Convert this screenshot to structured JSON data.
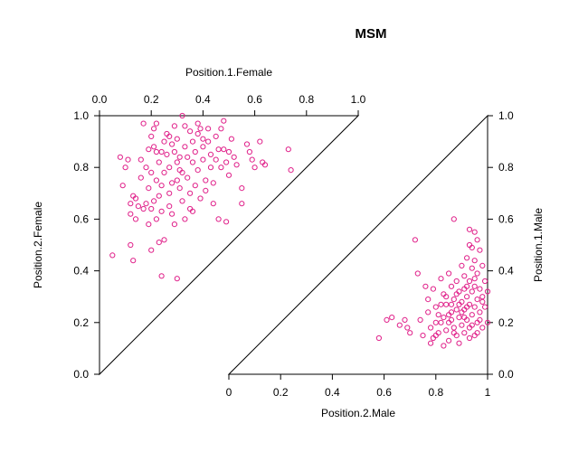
{
  "chart_data": {
    "type": "scatter",
    "title": "MSM",
    "point_color": "#e0218a",
    "panels": [
      {
        "name": "female",
        "xlabel": "Position.1.Female",
        "ylabel": "Position.2.Female",
        "xlim": [
          0,
          1.0
        ],
        "ylim": [
          0,
          1.0
        ],
        "x_ticks": [
          "0.0",
          "0.2",
          "0.4",
          "0.6",
          "0.8",
          "1.0"
        ],
        "y_ticks": [
          "0.0",
          "0.2",
          "0.4",
          "0.6",
          "0.8",
          "1.0"
        ],
        "points": [
          [
            0.05,
            0.46
          ],
          [
            0.08,
            0.84
          ],
          [
            0.09,
            0.73
          ],
          [
            0.1,
            0.8
          ],
          [
            0.11,
            0.83
          ],
          [
            0.12,
            0.5
          ],
          [
            0.13,
            0.44
          ],
          [
            0.12,
            0.66
          ],
          [
            0.13,
            0.69
          ],
          [
            0.14,
            0.68
          ],
          [
            0.12,
            0.62
          ],
          [
            0.14,
            0.6
          ],
          [
            0.15,
            0.65
          ],
          [
            0.16,
            0.76
          ],
          [
            0.17,
            0.64
          ],
          [
            0.16,
            0.83
          ],
          [
            0.18,
            0.8
          ],
          [
            0.17,
            0.97
          ],
          [
            0.19,
            0.87
          ],
          [
            0.2,
            0.92
          ],
          [
            0.21,
            0.95
          ],
          [
            0.21,
            0.88
          ],
          [
            0.2,
            0.78
          ],
          [
            0.19,
            0.72
          ],
          [
            0.18,
            0.66
          ],
          [
            0.2,
            0.64
          ],
          [
            0.21,
            0.67
          ],
          [
            0.22,
            0.86
          ],
          [
            0.23,
            0.82
          ],
          [
            0.22,
            0.75
          ],
          [
            0.23,
            0.69
          ],
          [
            0.24,
            0.63
          ],
          [
            0.25,
            0.9
          ],
          [
            0.26,
            0.93
          ],
          [
            0.25,
            0.78
          ],
          [
            0.24,
            0.73
          ],
          [
            0.26,
            0.85
          ],
          [
            0.27,
            0.8
          ],
          [
            0.27,
            0.7
          ],
          [
            0.28,
            0.62
          ],
          [
            0.28,
            0.74
          ],
          [
            0.29,
            0.86
          ],
          [
            0.3,
            0.91
          ],
          [
            0.3,
            0.82
          ],
          [
            0.31,
            0.79
          ],
          [
            0.31,
            0.72
          ],
          [
            0.32,
            0.67
          ],
          [
            0.32,
            1.0
          ],
          [
            0.33,
            0.96
          ],
          [
            0.33,
            0.88
          ],
          [
            0.34,
            0.84
          ],
          [
            0.34,
            0.76
          ],
          [
            0.35,
            0.7
          ],
          [
            0.35,
            0.64
          ],
          [
            0.36,
            0.9
          ],
          [
            0.36,
            0.82
          ],
          [
            0.37,
            0.86
          ],
          [
            0.37,
            0.73
          ],
          [
            0.38,
            0.93
          ],
          [
            0.38,
            0.79
          ],
          [
            0.39,
            0.68
          ],
          [
            0.39,
            0.95
          ],
          [
            0.4,
            0.88
          ],
          [
            0.4,
            0.83
          ],
          [
            0.41,
            0.75
          ],
          [
            0.41,
            0.71
          ],
          [
            0.42,
            0.9
          ],
          [
            0.43,
            0.85
          ],
          [
            0.43,
            0.8
          ],
          [
            0.44,
            0.74
          ],
          [
            0.44,
            0.66
          ],
          [
            0.45,
            0.92
          ],
          [
            0.45,
            0.83
          ],
          [
            0.46,
            0.87
          ],
          [
            0.47,
            0.8
          ],
          [
            0.47,
            0.95
          ],
          [
            0.48,
            0.98
          ],
          [
            0.48,
            0.87
          ],
          [
            0.49,
            0.82
          ],
          [
            0.5,
            0.86
          ],
          [
            0.5,
            0.77
          ],
          [
            0.51,
            0.91
          ],
          [
            0.52,
            0.84
          ],
          [
            0.53,
            0.81
          ],
          [
            0.55,
            0.72
          ],
          [
            0.55,
            0.66
          ],
          [
            0.57,
            0.89
          ],
          [
            0.58,
            0.86
          ],
          [
            0.59,
            0.83
          ],
          [
            0.6,
            0.8
          ],
          [
            0.62,
            0.9
          ],
          [
            0.63,
            0.82
          ],
          [
            0.64,
            0.81
          ],
          [
            0.73,
            0.87
          ],
          [
            0.74,
            0.79
          ],
          [
            0.2,
            0.48
          ],
          [
            0.23,
            0.51
          ],
          [
            0.25,
            0.52
          ],
          [
            0.24,
            0.38
          ],
          [
            0.3,
            0.37
          ],
          [
            0.19,
            0.58
          ],
          [
            0.29,
            0.58
          ],
          [
            0.33,
            0.6
          ],
          [
            0.22,
            0.6
          ],
          [
            0.27,
            0.65
          ],
          [
            0.36,
            0.63
          ],
          [
            0.46,
            0.6
          ],
          [
            0.49,
            0.59
          ],
          [
            0.42,
            0.95
          ],
          [
            0.4,
            0.91
          ],
          [
            0.38,
            0.97
          ],
          [
            0.35,
            0.94
          ],
          [
            0.29,
            0.96
          ],
          [
            0.27,
            0.92
          ],
          [
            0.22,
            0.97
          ],
          [
            0.24,
            0.86
          ],
          [
            0.28,
            0.89
          ],
          [
            0.31,
            0.84
          ],
          [
            0.32,
            0.78
          ],
          [
            0.3,
            0.75
          ]
        ]
      },
      {
        "name": "male",
        "xlabel": "Position.2.Male",
        "ylabel": "Position.1.Male",
        "xlim": [
          0,
          1
        ],
        "ylim": [
          0,
          1.0
        ],
        "x_ticks": [
          "0",
          "0.2",
          "0.4",
          "0.6",
          "0.8",
          "1"
        ],
        "y_ticks": [
          "0.0",
          "0.2",
          "0.4",
          "0.6",
          "0.8",
          "1.0"
        ],
        "points": [
          [
            0.58,
            0.14
          ],
          [
            0.61,
            0.21
          ],
          [
            0.63,
            0.22
          ],
          [
            0.66,
            0.19
          ],
          [
            0.68,
            0.21
          ],
          [
            0.69,
            0.18
          ],
          [
            0.7,
            0.16
          ],
          [
            0.72,
            0.52
          ],
          [
            0.73,
            0.39
          ],
          [
            0.74,
            0.21
          ],
          [
            0.75,
            0.15
          ],
          [
            0.76,
            0.34
          ],
          [
            0.77,
            0.29
          ],
          [
            0.77,
            0.24
          ],
          [
            0.78,
            0.18
          ],
          [
            0.78,
            0.12
          ],
          [
            0.79,
            0.33
          ],
          [
            0.8,
            0.26
          ],
          [
            0.8,
            0.15
          ],
          [
            0.81,
            0.23
          ],
          [
            0.82,
            0.37
          ],
          [
            0.82,
            0.2
          ],
          [
            0.83,
            0.11
          ],
          [
            0.83,
            0.31
          ],
          [
            0.84,
            0.27
          ],
          [
            0.84,
            0.17
          ],
          [
            0.85,
            0.39
          ],
          [
            0.85,
            0.23
          ],
          [
            0.85,
            0.13
          ],
          [
            0.86,
            0.34
          ],
          [
            0.86,
            0.21
          ],
          [
            0.87,
            0.29
          ],
          [
            0.87,
            0.18
          ],
          [
            0.87,
            0.6
          ],
          [
            0.88,
            0.36
          ],
          [
            0.88,
            0.25
          ],
          [
            0.88,
            0.15
          ],
          [
            0.89,
            0.32
          ],
          [
            0.89,
            0.22
          ],
          [
            0.9,
            0.42
          ],
          [
            0.9,
            0.28
          ],
          [
            0.9,
            0.19
          ],
          [
            0.91,
            0.38
          ],
          [
            0.91,
            0.33
          ],
          [
            0.91,
            0.25
          ],
          [
            0.91,
            0.16
          ],
          [
            0.92,
            0.45
          ],
          [
            0.92,
            0.3
          ],
          [
            0.92,
            0.21
          ],
          [
            0.93,
            0.56
          ],
          [
            0.93,
            0.36
          ],
          [
            0.93,
            0.27
          ],
          [
            0.93,
            0.18
          ],
          [
            0.94,
            0.49
          ],
          [
            0.94,
            0.41
          ],
          [
            0.94,
            0.32
          ],
          [
            0.94,
            0.23
          ],
          [
            0.95,
            0.55
          ],
          [
            0.95,
            0.44
          ],
          [
            0.95,
            0.34
          ],
          [
            0.95,
            0.26
          ],
          [
            0.95,
            0.15
          ],
          [
            0.96,
            0.39
          ],
          [
            0.96,
            0.29
          ],
          [
            0.96,
            0.2
          ],
          [
            0.97,
            0.48
          ],
          [
            0.97,
            0.33
          ],
          [
            0.97,
            0.24
          ],
          [
            0.98,
            0.42
          ],
          [
            0.98,
            0.3
          ],
          [
            0.98,
            0.18
          ],
          [
            0.99,
            0.36
          ],
          [
            0.99,
            0.26
          ],
          [
            1.0,
            0.32
          ],
          [
            1.0,
            0.2
          ],
          [
            0.84,
            0.3
          ],
          [
            0.86,
            0.27
          ],
          [
            0.88,
            0.31
          ],
          [
            0.9,
            0.24
          ],
          [
            0.92,
            0.26
          ],
          [
            0.89,
            0.12
          ],
          [
            0.85,
            0.2
          ],
          [
            0.81,
            0.16
          ],
          [
            0.83,
            0.22
          ],
          [
            0.87,
            0.16
          ],
          [
            0.93,
            0.14
          ],
          [
            0.96,
            0.16
          ],
          [
            0.97,
            0.21
          ],
          [
            0.94,
            0.19
          ],
          [
            0.91,
            0.22
          ],
          [
            0.89,
            0.27
          ],
          [
            0.86,
            0.24
          ],
          [
            0.82,
            0.27
          ],
          [
            0.8,
            0.2
          ],
          [
            0.79,
            0.14
          ],
          [
            0.96,
            0.52
          ],
          [
            0.93,
            0.5
          ],
          [
            0.95,
            0.37
          ],
          [
            0.92,
            0.34
          ],
          [
            0.98,
            0.28
          ]
        ]
      }
    ]
  }
}
